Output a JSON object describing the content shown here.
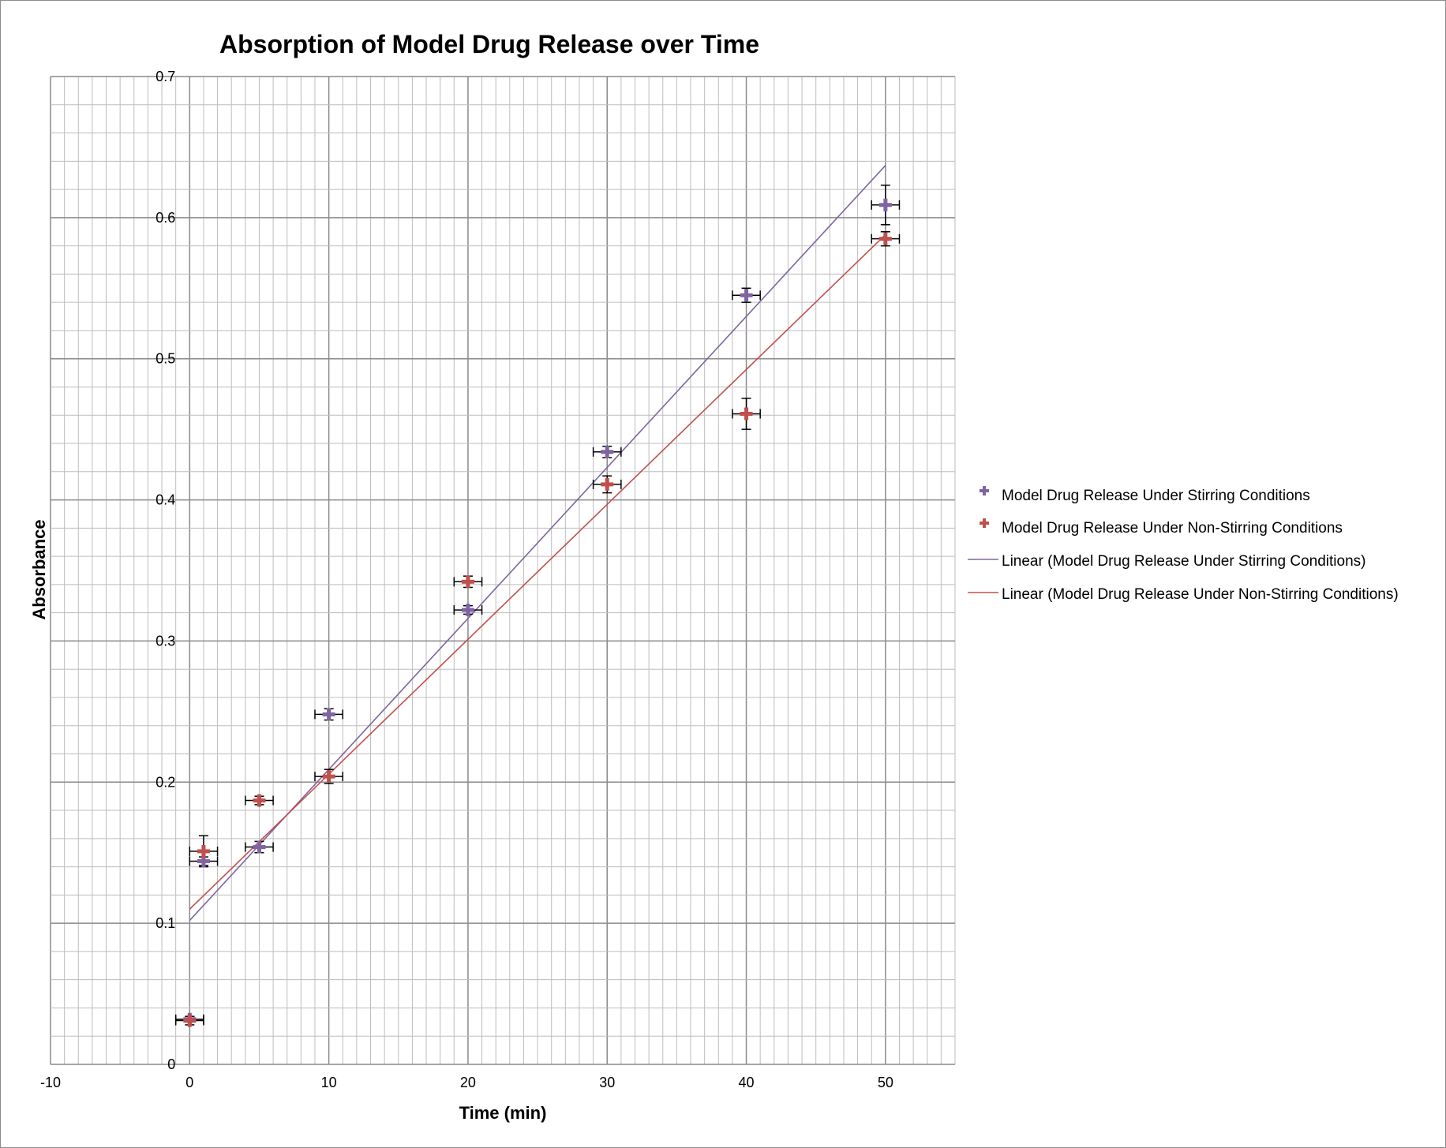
{
  "chart_data": {
    "type": "scatter",
    "title": "Absorption of Model Drug Release over Time",
    "xlabel": "Time (min)",
    "ylabel": "Absorbance",
    "xlim": [
      -10,
      55
    ],
    "ylim": [
      0,
      0.7
    ],
    "x_ticks": [
      -10,
      0,
      10,
      20,
      30,
      40,
      50
    ],
    "x_tick_labels": [
      "-10",
      "0",
      "10",
      "20",
      "30",
      "40",
      "50"
    ],
    "y_ticks": [
      0,
      0.1,
      0.2,
      0.3,
      0.4,
      0.5,
      0.6,
      0.7
    ],
    "y_tick_labels": [
      "0",
      "0.1",
      "0.2",
      "0.3",
      "0.4",
      "0.5",
      "0.6",
      "0.7"
    ],
    "grid": true,
    "legend_position": "right",
    "x_error": 1,
    "series": [
      {
        "name": "Model Drug Release Under Stirring Conditions",
        "color": "#8064a2",
        "marker": "plus",
        "points": [
          {
            "x": 0,
            "y": 0.032,
            "yerr": 0.002
          },
          {
            "x": 1,
            "y": 0.144,
            "yerr": 0.003
          },
          {
            "x": 5,
            "y": 0.154,
            "yerr": 0.004
          },
          {
            "x": 10,
            "y": 0.248,
            "yerr": 0.004
          },
          {
            "x": 20,
            "y": 0.322,
            "yerr": 0.003
          },
          {
            "x": 30,
            "y": 0.434,
            "yerr": 0.004
          },
          {
            "x": 40,
            "y": 0.545,
            "yerr": 0.005
          },
          {
            "x": 50,
            "y": 0.609,
            "yerr": 0.014
          }
        ]
      },
      {
        "name": "Model Drug Release Under Non-Stirring Conditions",
        "color": "#c0504d",
        "marker": "plus",
        "points": [
          {
            "x": 0,
            "y": 0.031,
            "yerr": 0.003
          },
          {
            "x": 1,
            "y": 0.151,
            "yerr": 0.011
          },
          {
            "x": 5,
            "y": 0.187,
            "yerr": 0.003
          },
          {
            "x": 10,
            "y": 0.204,
            "yerr": 0.005
          },
          {
            "x": 20,
            "y": 0.342,
            "yerr": 0.004
          },
          {
            "x": 30,
            "y": 0.411,
            "yerr": 0.006
          },
          {
            "x": 40,
            "y": 0.461,
            "yerr": 0.011
          },
          {
            "x": 50,
            "y": 0.585,
            "yerr": 0.005
          }
        ]
      }
    ],
    "trendlines": [
      {
        "name": "Linear (Model Drug Release Under Stirring Conditions)",
        "color": "#8064a2",
        "x": [
          0,
          50
        ],
        "y": [
          0.102,
          0.637
        ]
      },
      {
        "name": "Linear (Model Drug Release Under Non-Stirring Conditions)",
        "color": "#c0504d",
        "x": [
          0,
          50
        ],
        "y": [
          0.11,
          0.588
        ]
      }
    ]
  }
}
